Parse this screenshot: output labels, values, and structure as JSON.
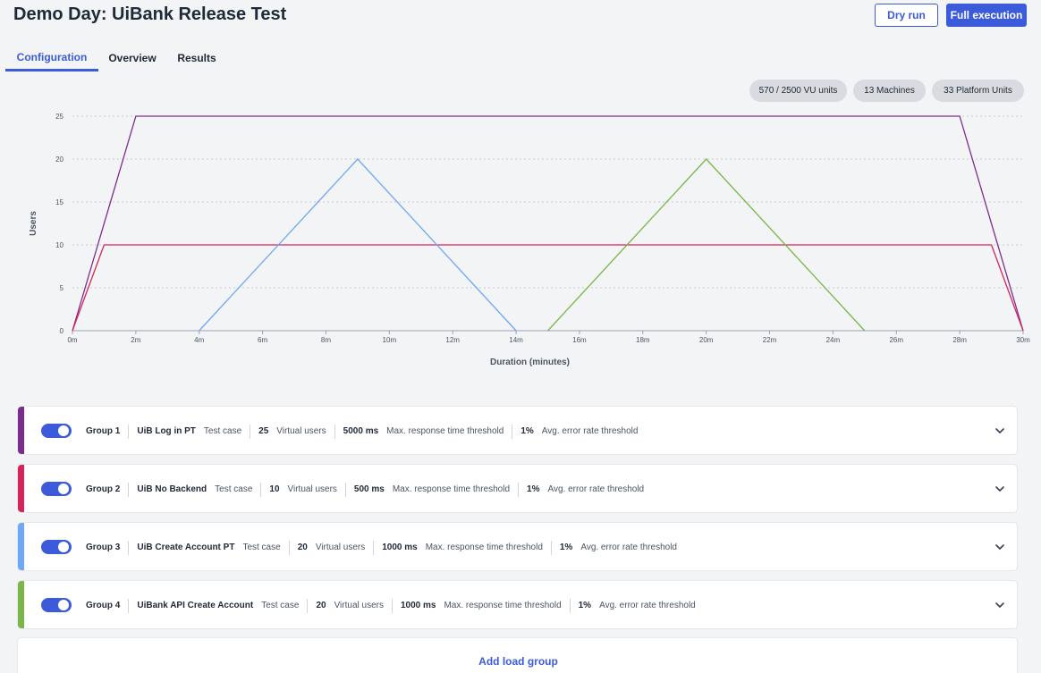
{
  "header": {
    "title": "Demo Day: UiBank Release Test",
    "dry_run_label": "Dry run",
    "full_execution_label": "Full execution"
  },
  "tabs": [
    {
      "label": "Configuration",
      "active": true
    },
    {
      "label": "Overview",
      "active": false
    },
    {
      "label": "Results",
      "active": false
    }
  ],
  "summary": {
    "vu_units": "570 / 2500 VU units",
    "machines": "13 Machines",
    "platform_units": "33 Platform Units"
  },
  "chart_data": {
    "type": "line",
    "xlabel": "Duration (minutes)",
    "ylabel": "Users",
    "xlim": [
      0,
      30
    ],
    "ylim": [
      0,
      25
    ],
    "x_ticks": [
      "0m",
      "2m",
      "4m",
      "6m",
      "8m",
      "10m",
      "12m",
      "14m",
      "16m",
      "18m",
      "20m",
      "22m",
      "24m",
      "26m",
      "28m",
      "30m"
    ],
    "y_ticks": [
      "0",
      "5",
      "10",
      "15",
      "20",
      "25"
    ],
    "grid": true,
    "series": [
      {
        "color": "#7b2d8e",
        "points": [
          [
            0,
            0
          ],
          [
            2,
            25
          ],
          [
            28,
            25
          ],
          [
            30,
            0
          ]
        ]
      },
      {
        "color": "#d6245a",
        "points": [
          [
            0,
            0
          ],
          [
            1,
            10
          ],
          [
            29,
            10
          ],
          [
            30,
            0
          ]
        ]
      },
      {
        "color": "#6ea8f7",
        "points": [
          [
            4,
            0
          ],
          [
            9,
            20
          ],
          [
            14,
            0
          ]
        ]
      },
      {
        "color": "#7ab648",
        "points": [
          [
            15,
            0
          ],
          [
            20,
            20
          ],
          [
            25,
            0
          ]
        ]
      }
    ]
  },
  "groups": [
    {
      "color": "#7b2d8e",
      "enabled": true,
      "name": "Group 1",
      "test_case": "UiB Log in PT",
      "test_case_label": "Test case",
      "vu": "25",
      "vu_label": "Virtual users",
      "max_rt": "5000 ms",
      "max_rt_label": "Max. response time threshold",
      "err": "1%",
      "err_label": "Avg. error rate threshold"
    },
    {
      "color": "#d6245a",
      "enabled": true,
      "name": "Group 2",
      "test_case": "UiB No Backend",
      "test_case_label": "Test case",
      "vu": "10",
      "vu_label": "Virtual users",
      "max_rt": "500 ms",
      "max_rt_label": "Max. response time threshold",
      "err": "1%",
      "err_label": "Avg. error rate threshold"
    },
    {
      "color": "#6ea8f7",
      "enabled": true,
      "name": "Group 3",
      "test_case": "UiB Create Account PT",
      "test_case_label": "Test case",
      "vu": "20",
      "vu_label": "Virtual users",
      "max_rt": "1000 ms",
      "max_rt_label": "Max. response time threshold",
      "err": "1%",
      "err_label": "Avg. error rate threshold"
    },
    {
      "color": "#7ab648",
      "enabled": true,
      "name": "Group 4",
      "test_case": "UiBank API Create Account",
      "test_case_label": "Test case",
      "vu": "20",
      "vu_label": "Virtual users",
      "max_rt": "1000 ms",
      "max_rt_label": "Max. response time threshold",
      "err": "1%",
      "err_label": "Avg. error rate threshold"
    }
  ],
  "add_group_label": "Add load group"
}
